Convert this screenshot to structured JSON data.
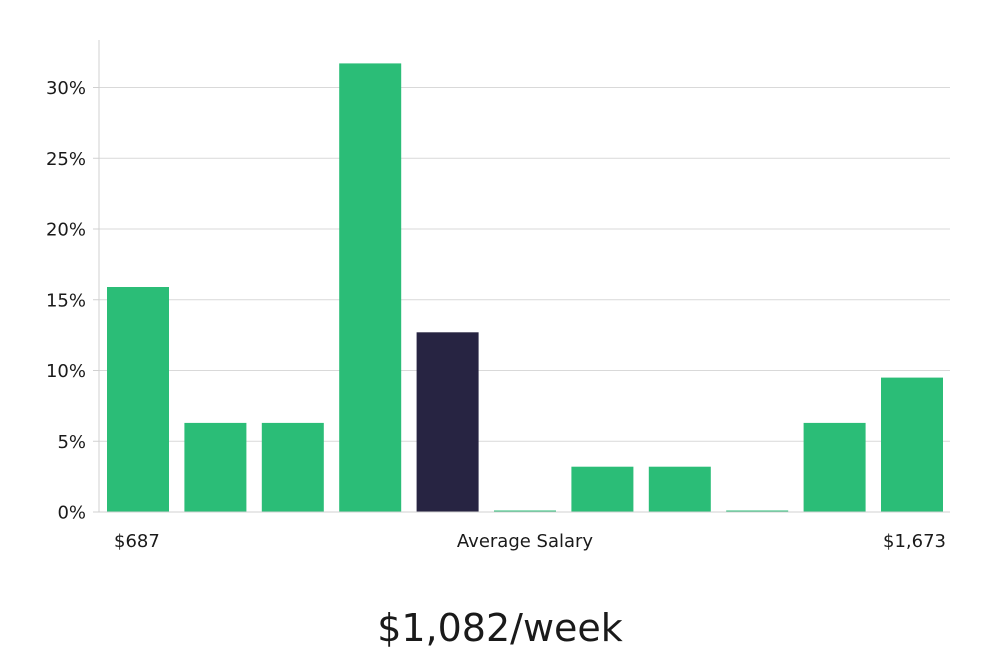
{
  "chart_data": {
    "type": "bar",
    "ylim": [
      0,
      33
    ],
    "yticks": [
      0,
      5,
      10,
      15,
      20,
      25,
      30
    ],
    "ytick_labels": [
      "0%",
      "5%",
      "10%",
      "15%",
      "20%",
      "25%",
      "30%"
    ],
    "values": [
      15.9,
      6.3,
      6.3,
      31.7,
      12.7,
      0,
      3.2,
      3.2,
      0,
      6.3,
      9.5
    ],
    "highlight_index": 4,
    "colors": {
      "bar": "#2bbd77",
      "highlight": "#272442"
    },
    "grid": true,
    "x_labels": {
      "left": "$687",
      "center": "Average Salary",
      "right": "$1,673"
    }
  },
  "headline": "$1,082/week"
}
